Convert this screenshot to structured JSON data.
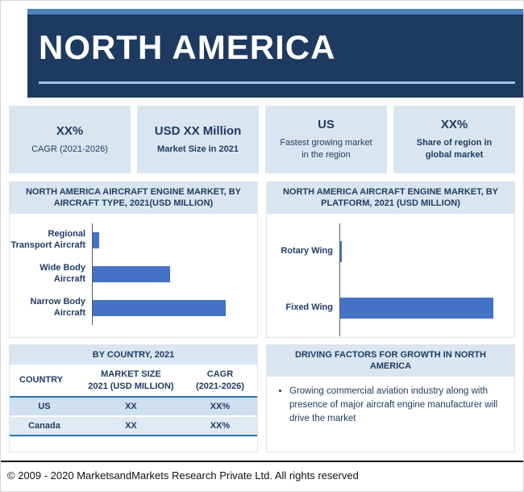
{
  "banner": {
    "title": "NORTH AMERICA"
  },
  "stats": [
    {
      "value": "XX%",
      "label": "CAGR (2021-2026)"
    },
    {
      "value": "USD XX Million",
      "label": "Market Size in 2021"
    },
    {
      "value": "US",
      "label": "Fastest growing market in the region"
    },
    {
      "value": "XX%",
      "label": "Share of region in global market"
    }
  ],
  "chart_data": [
    {
      "type": "bar",
      "orientation": "horizontal",
      "title": "NORTH AMERICA AIRCRAFT ENGINE MARKET, BY AIRCRAFT TYPE, 2021(USD MILLION)",
      "categories": [
        "Regional Transport Aircraft",
        "Wide Body Aircraft",
        "Narrow Body Aircraft"
      ],
      "values": [
        4,
        50,
        86
      ],
      "values_unit": "estimated percent of plot width; numeric values not labeled on chart",
      "bar_color": "#4472c4",
      "grid": false,
      "legend": false
    },
    {
      "type": "bar",
      "orientation": "horizontal",
      "title": "NORTH AMERICA AIRCRAFT ENGINE MARKET, BY PLATFORM, 2021 (USD MILLION)",
      "categories": [
        "Rotary Wing",
        "Fixed Wing"
      ],
      "values": [
        1,
        93
      ],
      "values_unit": "estimated percent of plot width; numeric values not labeled on chart",
      "bar_color": "#4472c4",
      "grid": false,
      "legend": false
    },
    {
      "type": "table",
      "title": "BY COUNTRY, 2021",
      "columns": [
        "COUNTRY",
        "MARKET SIZE\n2021 (USD MILLION)",
        "CAGR\n(2021-2026)"
      ],
      "rows": [
        [
          "US",
          "XX",
          "XX%"
        ],
        [
          "Canada",
          "XX",
          "XX%"
        ]
      ]
    }
  ],
  "driving_factors": {
    "title": "DRIVING FACTORS FOR GROWTH IN NORTH AMERICA",
    "bullets": [
      "Growing commercial aviation industry along with presence of major aircraft engine manufacturer will drive the market"
    ]
  },
  "footer": {
    "text": "© 2009 - 2020 MarketsandMarkets Research Private Ltd. All rights reserved"
  },
  "colors": {
    "banner_navy": "#1d3a60",
    "banner_strip_blue": "#4f81bd",
    "underline_blue": "#9dc3e6",
    "card_light_blue": "#d9e6f2",
    "bar_blue": "#4472c4",
    "table_rule_blue": "#2e75b6",
    "text_navy": "#1e3a5f"
  }
}
